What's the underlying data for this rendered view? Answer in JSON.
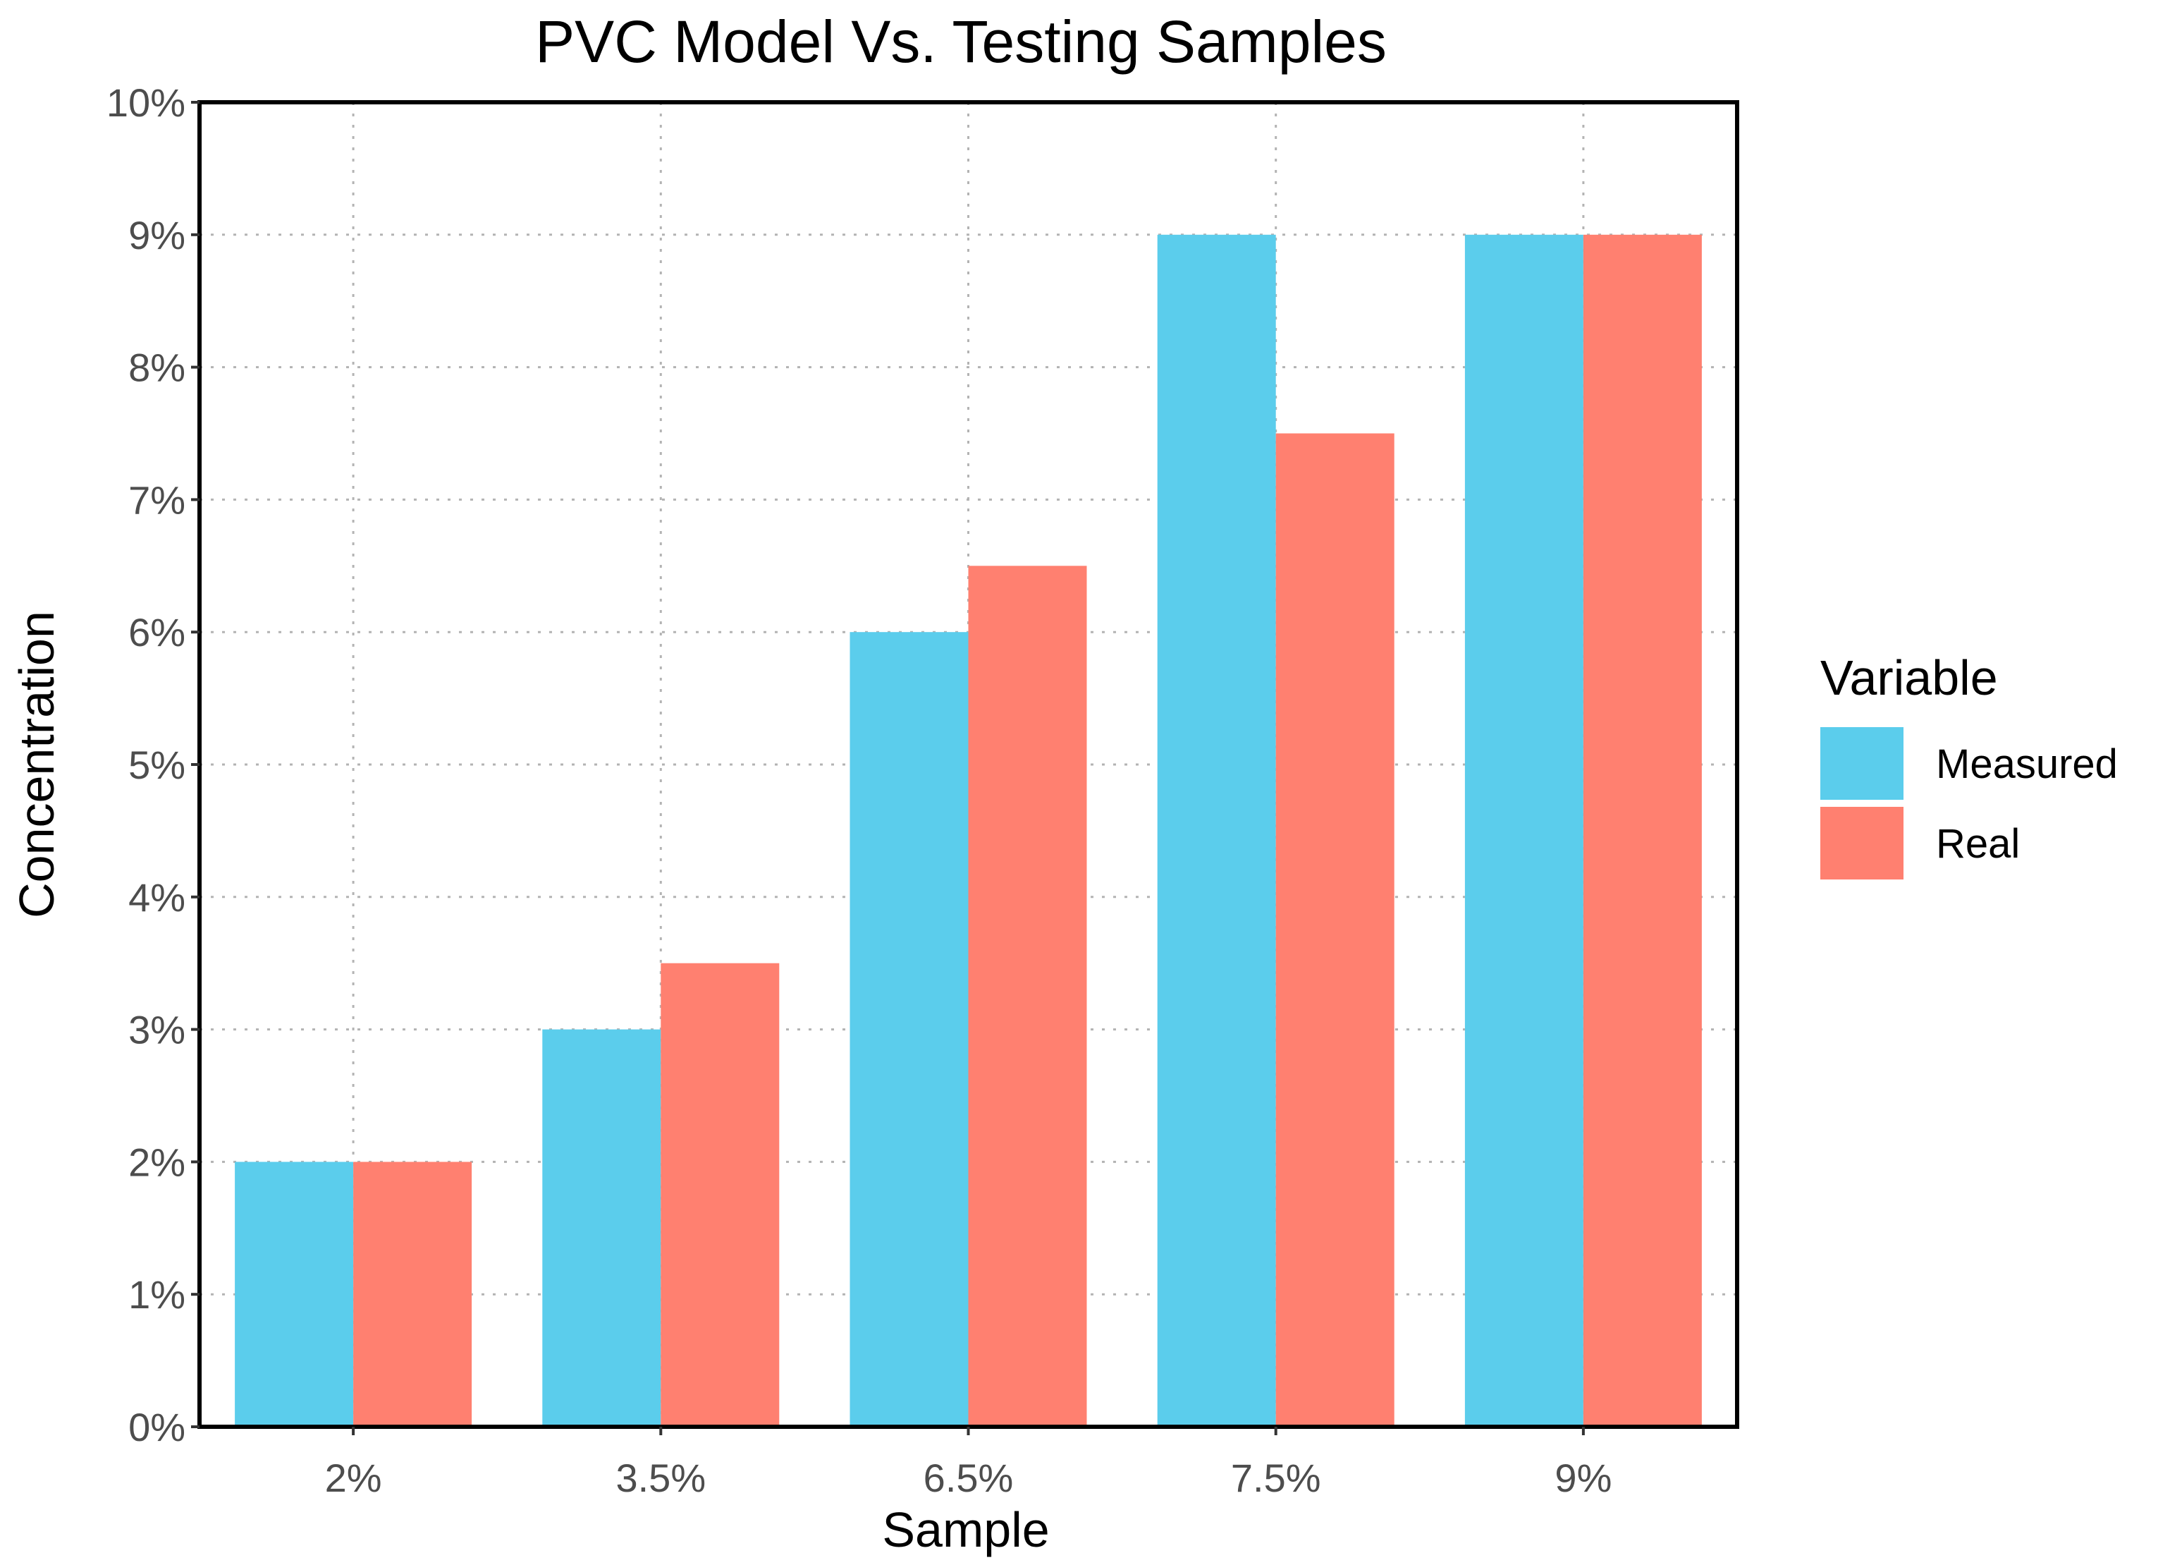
{
  "chart_data": {
    "type": "bar",
    "title": "PVC Model Vs. Testing Samples",
    "xlabel": "Sample",
    "ylabel": "Concentration",
    "categories": [
      "2%",
      "3.5%",
      "6.5%",
      "7.5%",
      "9%"
    ],
    "series": [
      {
        "name": "Measured",
        "color": "#5bcdec",
        "values": [
          2,
          3,
          6,
          9,
          9
        ]
      },
      {
        "name": "Real",
        "color": "#ff8070",
        "values": [
          2,
          3.5,
          6.5,
          7.5,
          9
        ]
      }
    ],
    "ylim": [
      0,
      10
    ],
    "yticks": [
      "0%",
      "1%",
      "2%",
      "3%",
      "4%",
      "5%",
      "6%",
      "7%",
      "8%",
      "9%",
      "10%"
    ],
    "grid": true,
    "legend": {
      "title": "Variable",
      "position": "right"
    }
  }
}
